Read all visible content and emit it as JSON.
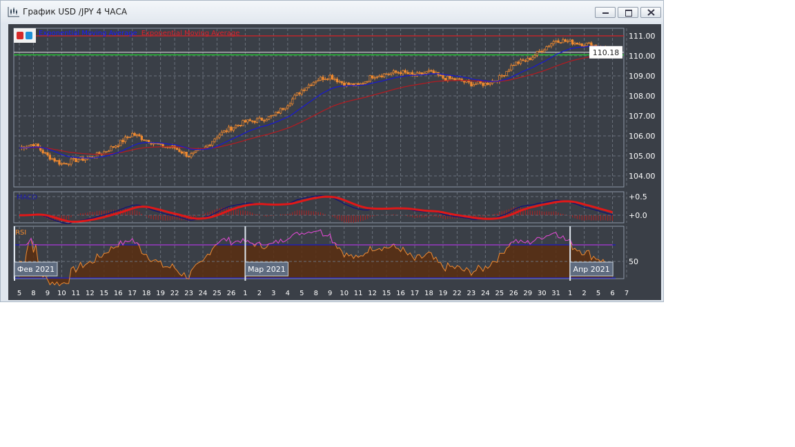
{
  "window": {
    "title": "График USD /JPY  4 ЧАСА",
    "buttons": [
      "minimize",
      "maximize",
      "close"
    ]
  },
  "legend": {
    "items": [
      {
        "label": "Exponential Moving Average",
        "color": "#1a1aff"
      },
      {
        "label": "Exponential Moving Average",
        "color": "#e0202a"
      }
    ]
  },
  "price_axis": {
    "ticks": [
      "111.00",
      "110.00",
      "109.00",
      "108.00",
      "107.00",
      "106.00",
      "105.00",
      "104.00"
    ],
    "current_price": "110.18"
  },
  "macd": {
    "label": "MACD",
    "ticks": [
      "+0.5",
      "+0.0"
    ]
  },
  "rsi": {
    "label": "RSI",
    "ticks": [
      "50"
    ]
  },
  "months": [
    "Фев 2021",
    "Мар 2021",
    "Апр 2021"
  ],
  "colors": {
    "background": "#3a3f47",
    "candle": "#f08a30",
    "ema_fast": "#1a1acc",
    "ema_slow": "#b01c22",
    "resistance": "#c0262c",
    "support": "#22c030",
    "rsi_fill": "#5a2e10",
    "overbought": "#d040e0"
  },
  "chart_data": {
    "type": "candlestick",
    "symbol": "USD/JPY",
    "timeframe": "4H",
    "ylim": [
      103.6,
      111.4
    ],
    "x": [
      "5",
      "8",
      "9",
      "10",
      "11",
      "12",
      "15",
      "16",
      "17",
      "18",
      "19",
      "22",
      "23",
      "24",
      "25",
      "26",
      "1",
      "2",
      "3",
      "4",
      "5",
      "8",
      "9",
      "10",
      "11",
      "12",
      "15",
      "16",
      "17",
      "18",
      "19",
      "22",
      "23",
      "24",
      "25",
      "26",
      "29",
      "30",
      "31",
      "1",
      "2",
      "5",
      "6",
      "7"
    ],
    "close": [
      105.4,
      105.6,
      105.0,
      104.6,
      104.8,
      104.9,
      105.2,
      105.6,
      106.1,
      105.8,
      105.5,
      105.4,
      105.0,
      105.3,
      106.0,
      106.4,
      106.7,
      106.8,
      107.0,
      107.6,
      108.3,
      108.8,
      109.0,
      108.6,
      108.5,
      109.0,
      109.1,
      109.2,
      109.0,
      109.2,
      108.9,
      108.8,
      108.6,
      108.6,
      108.9,
      109.6,
      109.8,
      110.3,
      110.8,
      110.7,
      110.6,
      110.5,
      110.2,
      null
    ],
    "horizontal_lines": [
      {
        "value": 111.0,
        "color": "red"
      },
      {
        "value": 110.18,
        "color": "white"
      },
      {
        "value": 110.05,
        "color": "green"
      }
    ],
    "rsi_levels": [
      30,
      50,
      70
    ],
    "grid": true
  }
}
